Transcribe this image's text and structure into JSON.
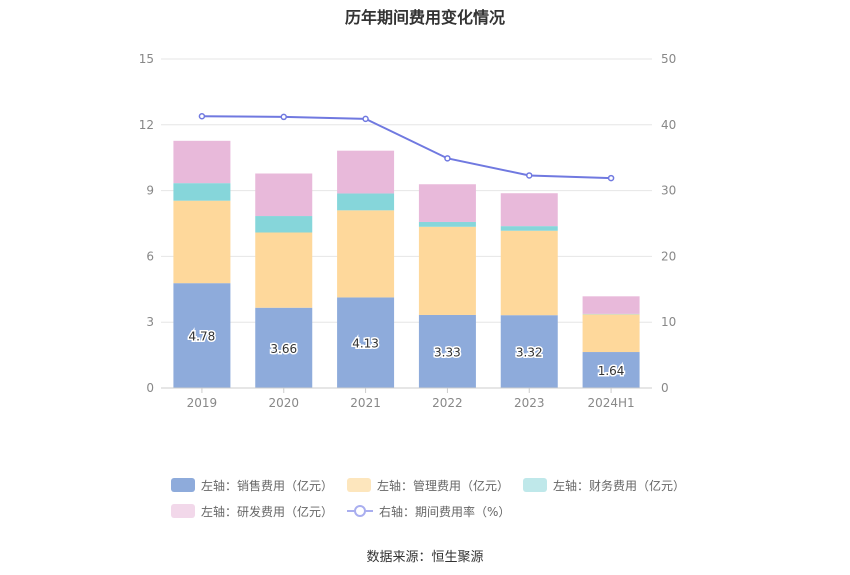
{
  "chart_data": {
    "type": "bar",
    "title": "历年期间费用变化情况",
    "categories": [
      "2019",
      "2020",
      "2021",
      "2022",
      "2023",
      "2024H1"
    ],
    "stacked": true,
    "left_axis": {
      "ylim": [
        0,
        15
      ],
      "ticks": [
        "0",
        "3",
        "6",
        "9",
        "12",
        "15"
      ]
    },
    "right_axis": {
      "ylim": [
        0,
        50
      ],
      "ticks": [
        "0",
        "10",
        "20",
        "30",
        "40",
        "50"
      ]
    },
    "grid": true,
    "legend_position": "bottom",
    "series": [
      {
        "name": "左轴：销售费用（亿元）",
        "axis": "left",
        "color": "#8eabdb",
        "values": [
          4.78,
          3.66,
          4.13,
          3.33,
          3.32,
          1.64
        ],
        "labels": [
          "4.78",
          "3.66",
          "4.13",
          "3.33",
          "3.32",
          "1.64"
        ]
      },
      {
        "name": "左轴：管理费用（亿元）",
        "axis": "left",
        "color": "#fed89b",
        "values": [
          3.76,
          3.43,
          3.97,
          4.02,
          3.85,
          1.72
        ]
      },
      {
        "name": "左轴：财务费用（亿元）",
        "axis": "left",
        "color": "#86d6da",
        "values": [
          0.8,
          0.75,
          0.77,
          0.22,
          0.21,
          0.02
        ]
      },
      {
        "name": "左轴：研发费用（亿元）",
        "axis": "left",
        "color": "#e8b9da",
        "values": [
          1.93,
          1.94,
          1.95,
          1.72,
          1.5,
          0.8
        ]
      },
      {
        "name": "右轴：期间费用率（%）",
        "axis": "right",
        "type": "line",
        "color": "#7079e0",
        "values": [
          41.3,
          41.2,
          40.9,
          34.9,
          32.3,
          31.9
        ]
      }
    ]
  },
  "source": "数据来源：恒生聚源"
}
